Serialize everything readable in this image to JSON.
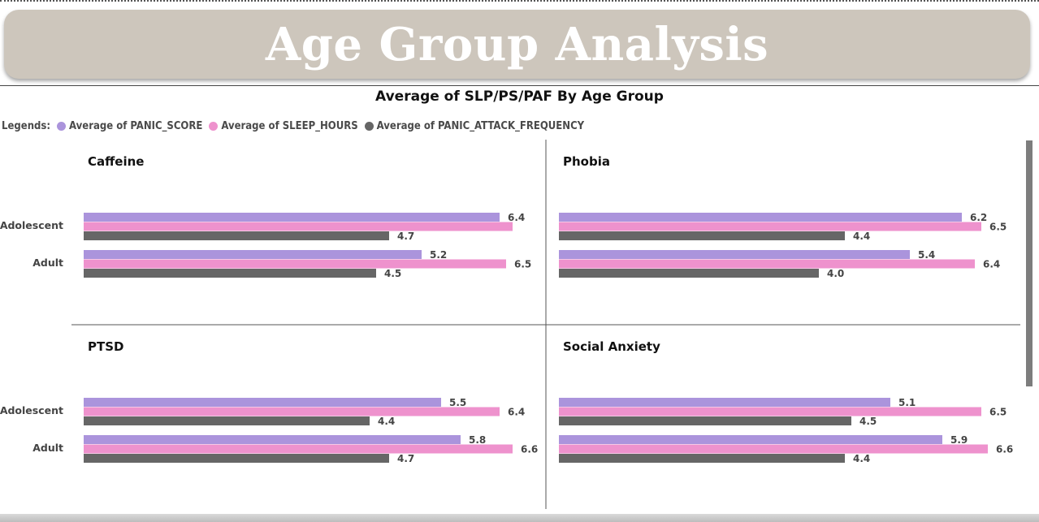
{
  "banner": {
    "title": "Age Group Analysis"
  },
  "colors": {
    "banner_bg": "#cdc6bc",
    "panic_score": "#ab94dc",
    "sleep_hours": "#ee92cd",
    "panic_attack_frequency": "#666666"
  },
  "legend": {
    "title": "Legends:",
    "items": [
      {
        "label": "Average of PANIC_SCORE",
        "color": "#ab94dc"
      },
      {
        "label": "Average of SLEEP_HOURS",
        "color": "#ee92cd"
      },
      {
        "label": "Average of PANIC_ATTACK_FREQUENCY",
        "color": "#666666"
      }
    ]
  },
  "chart_data": {
    "type": "bar",
    "orientation": "horizontal",
    "title": "Average of SLP/PS/PAF By Age Group",
    "categories": [
      "Adolescent",
      "Adult"
    ],
    "xlim": [
      0,
      7
    ],
    "legend_position": "top-left",
    "panels": [
      {
        "title": "Caffeine",
        "series": [
          {
            "name": "Average of PANIC_SCORE",
            "values": [
              6.4,
              5.2
            ]
          },
          {
            "name": "Average of SLEEP_HOURS",
            "values": [
              6.6,
              6.5
            ]
          },
          {
            "name": "Average of PANIC_ATTACK_FREQUENCY",
            "values": [
              4.7,
              4.5
            ]
          }
        ]
      },
      {
        "title": "Phobia",
        "series": [
          {
            "name": "Average of PANIC_SCORE",
            "values": [
              6.2,
              5.4
            ]
          },
          {
            "name": "Average of SLEEP_HOURS",
            "values": [
              6.5,
              6.4
            ]
          },
          {
            "name": "Average of PANIC_ATTACK_FREQUENCY",
            "values": [
              4.4,
              4.0
            ]
          }
        ]
      },
      {
        "title": "PTSD",
        "series": [
          {
            "name": "Average of PANIC_SCORE",
            "values": [
              5.5,
              5.8
            ]
          },
          {
            "name": "Average of SLEEP_HOURS",
            "values": [
              6.4,
              6.6
            ]
          },
          {
            "name": "Average of PANIC_ATTACK_FREQUENCY",
            "values": [
              4.4,
              4.7
            ]
          }
        ]
      },
      {
        "title": "Social Anxiety",
        "series": [
          {
            "name": "Average of PANIC_SCORE",
            "values": [
              5.1,
              5.9
            ]
          },
          {
            "name": "Average of SLEEP_HOURS",
            "values": [
              6.5,
              6.6
            ]
          },
          {
            "name": "Average of PANIC_ATTACK_FREQUENCY",
            "values": [
              4.5,
              4.4
            ]
          }
        ]
      }
    ],
    "hidden_labels": [
      {
        "panel": 0,
        "series": 1,
        "category": 0
      }
    ]
  }
}
